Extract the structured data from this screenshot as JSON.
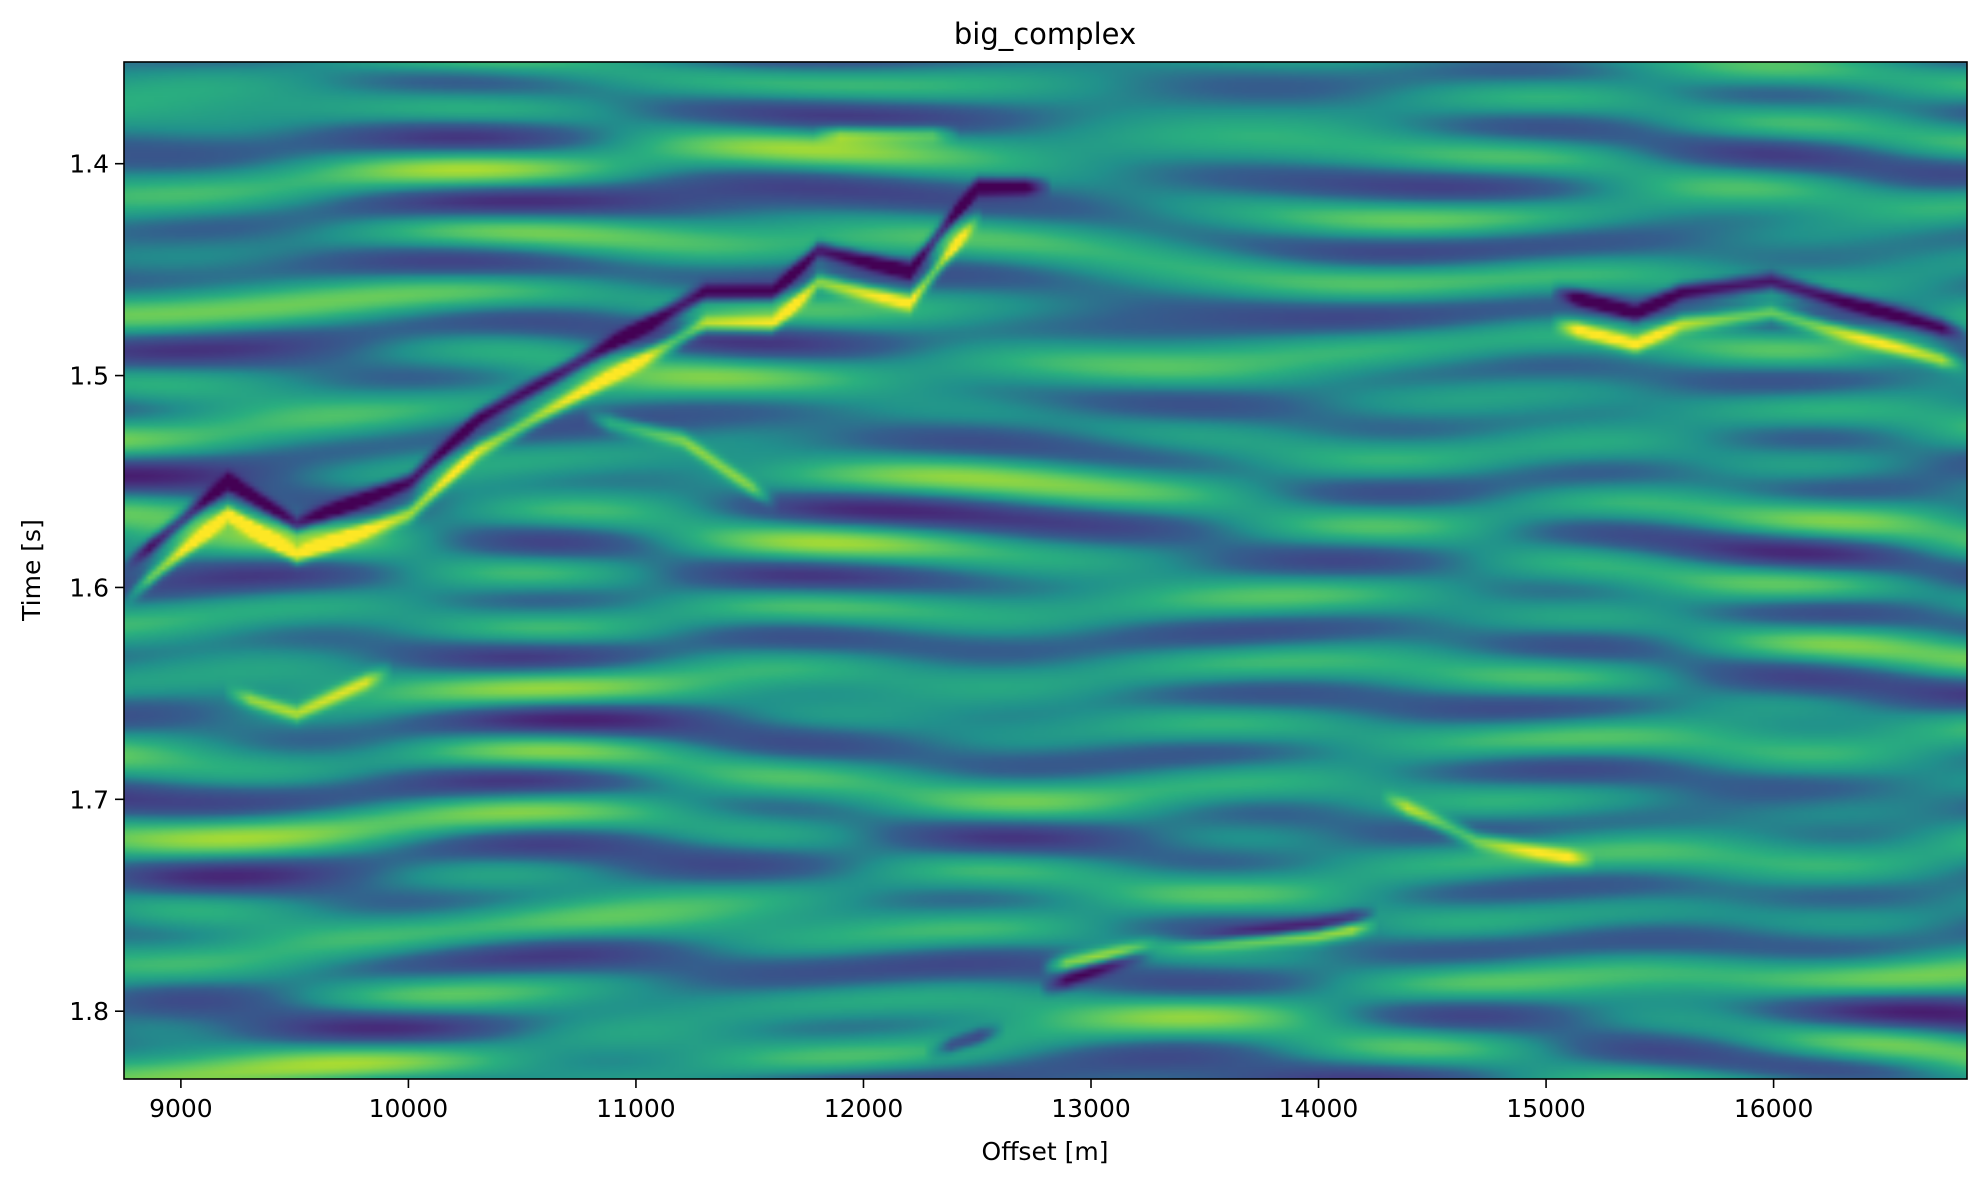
{
  "chart_data": {
    "type": "heatmap",
    "title": "big_complex",
    "xlabel": "Offset [m]",
    "ylabel": "Time [s]",
    "xlim": [
      8750,
      16850
    ],
    "ylim": [
      1.832,
      1.352
    ],
    "y_inverted": true,
    "colormap": "viridis",
    "grid": false,
    "legend": "none",
    "x_ticks": [
      9000,
      10000,
      11000,
      12000,
      13000,
      14000,
      15000,
      16000
    ],
    "x_tick_labels": [
      "9000",
      "10000",
      "11000",
      "12000",
      "13000",
      "14000",
      "15000",
      "16000"
    ],
    "y_ticks": [
      1.4,
      1.5,
      1.6,
      1.7,
      1.8
    ],
    "y_tick_labels": [
      "1.4",
      "1.5",
      "1.6",
      "1.7",
      "1.8"
    ],
    "reflectors": [
      {
        "points": [
          [
            8750,
            1.59
          ],
          [
            9200,
            1.55
          ],
          [
            9500,
            1.57
          ],
          [
            10000,
            1.55
          ],
          [
            10300,
            1.52
          ],
          [
            10800,
            1.49
          ],
          [
            11300,
            1.46
          ],
          [
            11600,
            1.46
          ],
          [
            11800,
            1.44
          ],
          [
            12200,
            1.45
          ],
          [
            12500,
            1.41
          ],
          [
            12800,
            1.41
          ]
        ],
        "amplitude": -1.0
      },
      {
        "points": [
          [
            8750,
            1.605
          ],
          [
            9200,
            1.565
          ],
          [
            9500,
            1.585
          ],
          [
            10000,
            1.565
          ],
          [
            10300,
            1.535
          ],
          [
            10800,
            1.505
          ],
          [
            11300,
            1.475
          ],
          [
            11600,
            1.475
          ],
          [
            11800,
            1.455
          ],
          [
            12200,
            1.465
          ],
          [
            12500,
            1.425
          ]
        ],
        "amplitude": 0.9
      },
      {
        "points": [
          [
            15050,
            1.46
          ],
          [
            15400,
            1.47
          ],
          [
            15600,
            1.46
          ],
          [
            16000,
            1.455
          ],
          [
            16850,
            1.48
          ]
        ],
        "amplitude": -1.0
      },
      {
        "points": [
          [
            15050,
            1.475
          ],
          [
            15400,
            1.485
          ],
          [
            15600,
            1.475
          ],
          [
            16000,
            1.47
          ],
          [
            16850,
            1.495
          ]
        ],
        "amplitude": 0.85
      },
      {
        "points": [
          [
            12800,
            1.79
          ],
          [
            13300,
            1.77
          ],
          [
            14000,
            1.76
          ],
          [
            14250,
            1.755
          ]
        ],
        "amplitude": -0.7
      },
      {
        "points": [
          [
            12800,
            1.78
          ],
          [
            13300,
            1.77
          ],
          [
            14000,
            1.765
          ],
          [
            14250,
            1.76
          ]
        ],
        "amplitude": 0.9
      },
      {
        "points": [
          [
            14300,
            1.7
          ],
          [
            14700,
            1.72
          ],
          [
            15200,
            1.73
          ]
        ],
        "amplitude": 0.7
      },
      {
        "points": [
          [
            9200,
            1.65
          ],
          [
            9500,
            1.66
          ],
          [
            9900,
            1.64
          ]
        ],
        "amplitude": 0.7
      },
      {
        "points": [
          [
            10800,
            1.52
          ],
          [
            11200,
            1.53
          ],
          [
            11600,
            1.56
          ]
        ],
        "amplitude": 0.6
      },
      {
        "points": [
          [
            11800,
            1.385
          ],
          [
            12400,
            1.385
          ]
        ],
        "amplitude": 0.5
      },
      {
        "points": [
          [
            12300,
            1.82
          ],
          [
            12600,
            1.81
          ]
        ],
        "amplitude": -0.6
      }
    ]
  }
}
